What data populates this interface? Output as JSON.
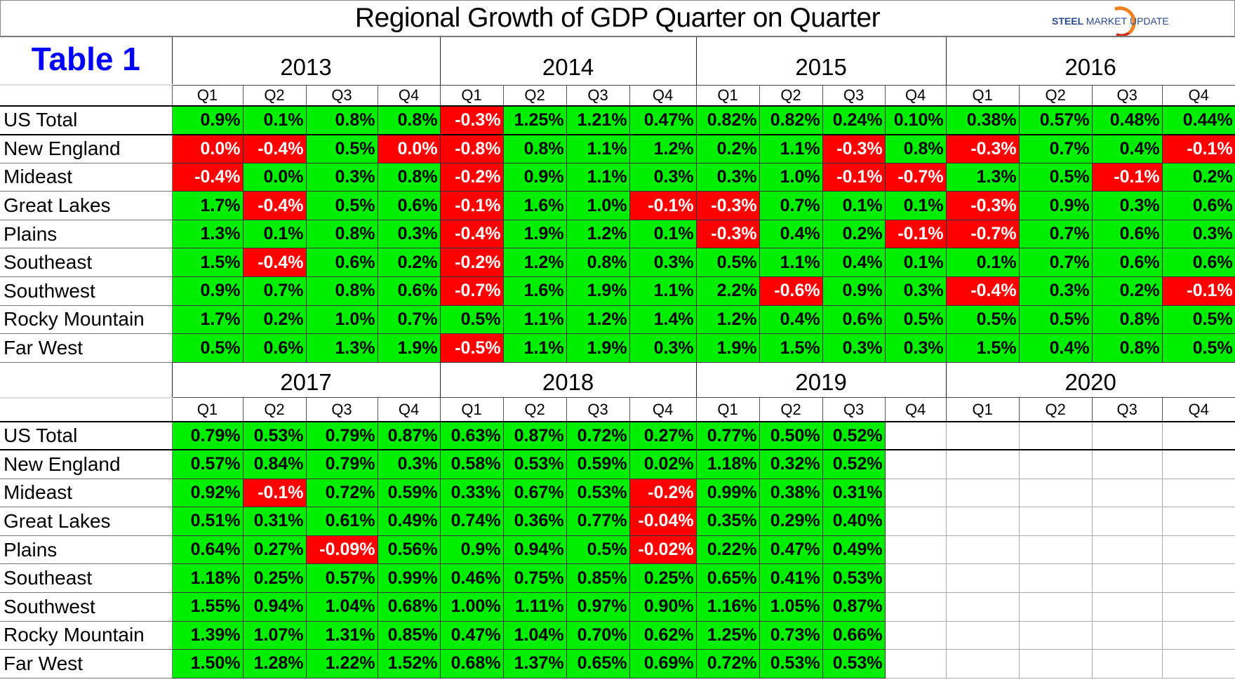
{
  "title": "Regional Growth of GDP Quarter on Quarter",
  "logo": {
    "text_bold": "STEEL",
    "text_mid": "MARKET",
    "text_light": "UPDATE"
  },
  "table_label": "Table 1",
  "colors": {
    "positive": "#00ee00",
    "negative": "#ff0000",
    "title_blue": "#0000ff"
  },
  "chart_data": {
    "type": "table",
    "title": "Regional Growth of GDP Quarter on Quarter",
    "sections": [
      {
        "years": [
          {
            "year": "2013",
            "quarters": [
              "Q1",
              "Q2",
              "Q3",
              "Q4"
            ]
          },
          {
            "year": "2014",
            "quarters": [
              "Q1",
              "Q2",
              "Q3",
              "Q4"
            ]
          },
          {
            "year": "2015",
            "quarters": [
              "Q1",
              "Q2",
              "Q3",
              "Q4"
            ]
          },
          {
            "year": "2016",
            "quarters": [
              "Q1",
              "Q2",
              "Q3",
              "Q4"
            ]
          }
        ],
        "rows": [
          {
            "region": "US Total",
            "values": [
              "0.9%",
              "0.1%",
              "0.8%",
              "0.8%",
              "-0.3%",
              "1.25%",
              "1.21%",
              "0.47%",
              "0.82%",
              "0.82%",
              "0.24%",
              "0.10%",
              "0.38%",
              "0.57%",
              "0.48%",
              "0.44%"
            ],
            "red": [
              4
            ]
          },
          {
            "region": "New England",
            "values": [
              "0.0%",
              "-0.4%",
              "0.5%",
              "0.0%",
              "-0.8%",
              "0.8%",
              "1.1%",
              "1.2%",
              "0.2%",
              "1.1%",
              "-0.3%",
              "0.8%",
              "-0.3%",
              "0.7%",
              "0.4%",
              "-0.1%"
            ],
            "red": [
              0,
              1,
              3,
              4,
              10,
              12,
              15
            ]
          },
          {
            "region": "Mideast",
            "values": [
              "-0.4%",
              "0.0%",
              "0.3%",
              "0.8%",
              "-0.2%",
              "0.9%",
              "1.1%",
              "0.3%",
              "0.3%",
              "1.0%",
              "-0.1%",
              "-0.7%",
              "1.3%",
              "0.5%",
              "-0.1%",
              "0.2%"
            ],
            "red": [
              0,
              4,
              10,
              11,
              14
            ]
          },
          {
            "region": "Great Lakes",
            "values": [
              "1.7%",
              "-0.4%",
              "0.5%",
              "0.6%",
              "-0.1%",
              "1.6%",
              "1.0%",
              "-0.1%",
              "-0.3%",
              "0.7%",
              "0.1%",
              "0.1%",
              "-0.3%",
              "0.9%",
              "0.3%",
              "0.6%"
            ],
            "red": [
              1,
              4,
              7,
              8,
              12
            ]
          },
          {
            "region": "Plains",
            "values": [
              "1.3%",
              "0.1%",
              "0.8%",
              "0.3%",
              "-0.4%",
              "1.9%",
              "1.2%",
              "0.1%",
              "-0.3%",
              "0.4%",
              "0.2%",
              "-0.1%",
              "-0.7%",
              "0.7%",
              "0.6%",
              "0.3%"
            ],
            "red": [
              4,
              8,
              11,
              12
            ]
          },
          {
            "region": "Southeast",
            "values": [
              "1.5%",
              "-0.4%",
              "0.6%",
              "0.2%",
              "-0.2%",
              "1.2%",
              "0.8%",
              "0.3%",
              "0.5%",
              "1.1%",
              "0.4%",
              "0.1%",
              "0.1%",
              "0.7%",
              "0.6%",
              "0.6%"
            ],
            "red": [
              1,
              4
            ]
          },
          {
            "region": "Southwest",
            "values": [
              "0.9%",
              "0.7%",
              "0.8%",
              "0.6%",
              "-0.7%",
              "1.6%",
              "1.9%",
              "1.1%",
              "2.2%",
              "-0.6%",
              "0.9%",
              "0.3%",
              "-0.4%",
              "0.3%",
              "0.2%",
              "-0.1%"
            ],
            "red": [
              4,
              9,
              12,
              15
            ]
          },
          {
            "region": "Rocky Mountain",
            "values": [
              "1.7%",
              "0.2%",
              "1.0%",
              "0.7%",
              "0.5%",
              "1.1%",
              "1.2%",
              "1.4%",
              "1.2%",
              "0.4%",
              "0.6%",
              "0.5%",
              "0.5%",
              "0.5%",
              "0.8%",
              "0.5%"
            ],
            "red": []
          },
          {
            "region": "Far West",
            "values": [
              "0.5%",
              "0.6%",
              "1.3%",
              "1.9%",
              "-0.5%",
              "1.1%",
              "1.9%",
              "0.3%",
              "1.9%",
              "1.5%",
              "0.3%",
              "0.3%",
              "1.5%",
              "0.4%",
              "0.8%",
              "0.5%"
            ],
            "red": [
              4
            ]
          }
        ]
      },
      {
        "years": [
          {
            "year": "2017",
            "quarters": [
              "Q1",
              "Q2",
              "Q3",
              "Q4"
            ]
          },
          {
            "year": "2018",
            "quarters": [
              "Q1",
              "Q2",
              "Q3",
              "Q4"
            ]
          },
          {
            "year": "2019",
            "quarters": [
              "Q1",
              "Q2",
              "Q3",
              "Q4"
            ]
          },
          {
            "year": "2020",
            "quarters": [
              "Q1",
              "Q2",
              "Q3",
              "Q4"
            ]
          }
        ],
        "rows": [
          {
            "region": "US Total",
            "values": [
              "0.79%",
              "0.53%",
              "0.79%",
              "0.87%",
              "0.63%",
              "0.87%",
              "0.72%",
              "0.27%",
              "0.77%",
              "0.50%",
              "0.52%",
              "",
              "",
              "",
              "",
              ""
            ],
            "red": []
          },
          {
            "region": "New England",
            "values": [
              "0.57%",
              "0.84%",
              "0.79%",
              "0.3%",
              "0.58%",
              "0.53%",
              "0.59%",
              "0.02%",
              "1.18%",
              "0.32%",
              "0.52%",
              "",
              "",
              "",
              "",
              ""
            ],
            "red": []
          },
          {
            "region": "Mideast",
            "values": [
              "0.92%",
              "-0.1%",
              "0.72%",
              "0.59%",
              "0.33%",
              "0.67%",
              "0.53%",
              "-0.2%",
              "0.99%",
              "0.38%",
              "0.31%",
              "",
              "",
              "",
              "",
              ""
            ],
            "red": [
              1,
              7
            ]
          },
          {
            "region": "Great Lakes",
            "values": [
              "0.51%",
              "0.31%",
              "0.61%",
              "0.49%",
              "0.74%",
              "0.36%",
              "0.77%",
              "-0.04%",
              "0.35%",
              "0.29%",
              "0.40%",
              "",
              "",
              "",
              "",
              ""
            ],
            "red": [
              7
            ]
          },
          {
            "region": "Plains",
            "values": [
              "0.64%",
              "0.27%",
              "-0.09%",
              "0.56%",
              "0.9%",
              "0.94%",
              "0.5%",
              "-0.02%",
              "0.22%",
              "0.47%",
              "0.49%",
              "",
              "",
              "",
              "",
              ""
            ],
            "red": [
              2,
              7
            ]
          },
          {
            "region": "Southeast",
            "values": [
              "1.18%",
              "0.25%",
              "0.57%",
              "0.99%",
              "0.46%",
              "0.75%",
              "0.85%",
              "0.25%",
              "0.65%",
              "0.41%",
              "0.53%",
              "",
              "",
              "",
              "",
              ""
            ],
            "red": []
          },
          {
            "region": "Southwest",
            "values": [
              "1.55%",
              "0.94%",
              "1.04%",
              "0.68%",
              "1.00%",
              "1.11%",
              "0.97%",
              "0.90%",
              "1.16%",
              "1.05%",
              "0.87%",
              "",
              "",
              "",
              "",
              ""
            ],
            "red": []
          },
          {
            "region": "Rocky Mountain",
            "values": [
              "1.39%",
              "1.07%",
              "1.31%",
              "0.85%",
              "0.47%",
              "1.04%",
              "0.70%",
              "0.62%",
              "1.25%",
              "0.73%",
              "0.66%",
              "",
              "",
              "",
              "",
              ""
            ],
            "red": []
          },
          {
            "region": "Far West",
            "values": [
              "1.50%",
              "1.28%",
              "1.22%",
              "1.52%",
              "0.68%",
              "1.37%",
              "0.65%",
              "0.69%",
              "0.72%",
              "0.53%",
              "0.53%",
              "",
              "",
              "",
              "",
              ""
            ],
            "red": []
          }
        ]
      }
    ]
  }
}
